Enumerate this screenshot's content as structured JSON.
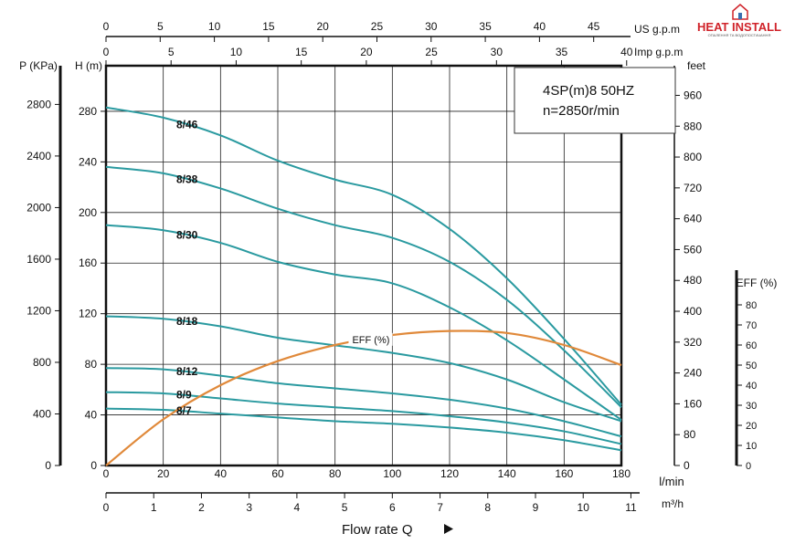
{
  "logo": {
    "text": "HEAT INSTALL",
    "subtext": "ОПАЛЕННЯ ТА ВОДОПОСТАЧАННЯ",
    "color": "#d0232a"
  },
  "chart_data": {
    "type": "line",
    "title": "4SP(m)8  50HZ",
    "subtitle": "n=2850r/min",
    "xlabel": "Flow rate Q",
    "x_unit": "l/min",
    "xlim": [
      0,
      180
    ],
    "x_ticks": [
      0,
      20,
      40,
      60,
      80,
      100,
      120,
      140,
      160,
      180
    ],
    "ylabel": "H (m)",
    "ylim": [
      0,
      300
    ],
    "y_ticks": [
      0,
      40,
      80,
      120,
      160,
      200,
      240,
      280
    ],
    "grid": true,
    "secondary_axes": {
      "us_gpm": {
        "label": "US g.p.m",
        "ticks": [
          0,
          5,
          10,
          15,
          20,
          25,
          30,
          35,
          40,
          45
        ]
      },
      "imp_gpm": {
        "label": "Imp g.p.m",
        "ticks": [
          0,
          5,
          10,
          15,
          20,
          25,
          30,
          35,
          40
        ]
      },
      "m3h": {
        "label": "m³/h",
        "ticks": [
          0,
          1,
          2,
          3,
          4,
          5,
          6,
          7,
          8,
          9,
          10,
          11
        ]
      },
      "pressure_kpa": {
        "label": "P (KPa)",
        "ticks": [
          0,
          400,
          800,
          1200,
          1600,
          2000,
          2400,
          2800
        ]
      },
      "feet": {
        "label": "feet",
        "ticks": [
          0,
          80,
          160,
          240,
          320,
          400,
          480,
          560,
          640,
          720,
          800,
          880,
          960
        ]
      },
      "eff_pct": {
        "label": "EFF (%)",
        "ticks": [
          0,
          10,
          20,
          30,
          40,
          50,
          60,
          70,
          80
        ]
      }
    },
    "curve_color": "#2a9aa0",
    "eff_color": "#e0893a",
    "series": [
      {
        "name": "8/46",
        "x": [
          0,
          20,
          40,
          60,
          80,
          100,
          120,
          140,
          160,
          180
        ],
        "y": [
          283,
          275,
          261,
          241,
          226,
          214,
          187,
          148,
          100,
          48
        ]
      },
      {
        "name": "8/38",
        "x": [
          0,
          20,
          40,
          60,
          80,
          100,
          120,
          140,
          160,
          180
        ],
        "y": [
          236,
          231,
          219,
          203,
          190,
          180,
          161,
          131,
          91,
          46
        ]
      },
      {
        "name": "8/30",
        "x": [
          0,
          20,
          40,
          60,
          80,
          100,
          120,
          140,
          160,
          180
        ],
        "y": [
          190,
          186,
          176,
          161,
          151,
          144,
          125,
          99,
          68,
          36
        ]
      },
      {
        "name": "8/18",
        "x": [
          0,
          20,
          40,
          60,
          80,
          100,
          120,
          140,
          160,
          180
        ],
        "y": [
          118,
          116,
          110,
          101,
          95,
          89,
          81,
          68,
          50,
          35
        ]
      },
      {
        "name": "8/12",
        "x": [
          0,
          20,
          40,
          60,
          80,
          100,
          120,
          140,
          160,
          180
        ],
        "y": [
          77,
          76,
          71,
          65,
          61,
          57,
          52,
          45,
          35,
          23
        ]
      },
      {
        "name": "8/9",
        "x": [
          0,
          20,
          40,
          60,
          80,
          100,
          120,
          140,
          160,
          180
        ],
        "y": [
          58,
          57,
          53,
          49,
          46,
          43,
          39,
          34,
          27,
          17
        ]
      },
      {
        "name": "8/7",
        "x": [
          0,
          20,
          40,
          60,
          80,
          100,
          120,
          140,
          160,
          180
        ],
        "y": [
          45,
          44,
          41,
          38,
          35,
          33,
          30,
          26,
          20,
          12
        ]
      }
    ],
    "efficiency": {
      "name": "EFF (%)",
      "x": [
        0,
        20,
        40,
        60,
        80,
        100,
        120,
        140,
        160,
        180
      ],
      "y": [
        0,
        23,
        40,
        52,
        60,
        65,
        67,
        66,
        60,
        50
      ]
    }
  }
}
